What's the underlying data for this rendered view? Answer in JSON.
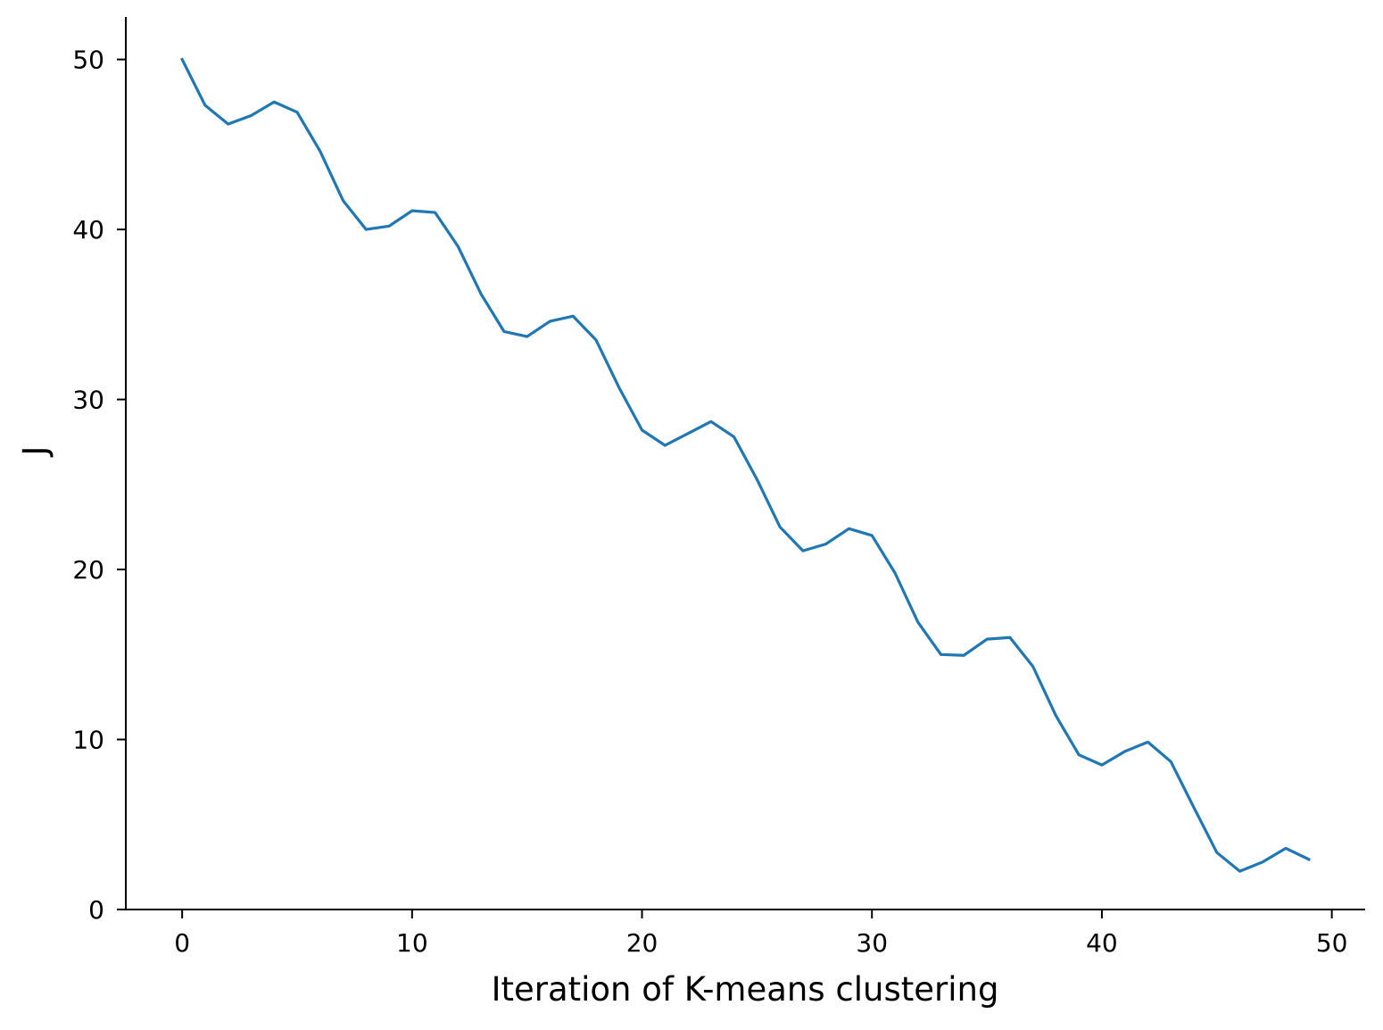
{
  "chart_data": {
    "type": "line",
    "title": "",
    "xlabel": "Iteration of K-means clustering",
    "ylabel": "J",
    "xlim": [
      -2.45,
      51.45
    ],
    "ylim": [
      0,
      52.5
    ],
    "xticks": [
      0,
      10,
      20,
      30,
      40,
      50
    ],
    "yticks": [
      0,
      10,
      20,
      30,
      40,
      50
    ],
    "grid": false,
    "legend": "none",
    "series": [
      {
        "color": "#1f77b4",
        "x": [
          0,
          1,
          2,
          3,
          4,
          5,
          6,
          7,
          8,
          9,
          10,
          11,
          12,
          13,
          14,
          15,
          16,
          17,
          18,
          19,
          20,
          21,
          22,
          23,
          24,
          25,
          26,
          27,
          28,
          29,
          30,
          31,
          32,
          33,
          34,
          35,
          36,
          37,
          38,
          39,
          40,
          41,
          42,
          43,
          44,
          45,
          46,
          47,
          48,
          49
        ],
        "y": [
          50.0,
          47.3,
          46.2,
          46.7,
          47.5,
          46.9,
          44.6,
          41.7,
          40.0,
          40.2,
          41.1,
          41.0,
          39.0,
          36.2,
          34.0,
          33.7,
          34.6,
          34.9,
          33.5,
          30.7,
          28.2,
          27.3,
          28.0,
          28.7,
          27.8,
          25.3,
          22.5,
          21.1,
          21.5,
          22.4,
          22.0,
          19.8,
          16.9,
          15.0,
          14.95,
          15.9,
          16.0,
          14.3,
          11.4,
          9.1,
          8.5,
          9.3,
          9.85,
          8.7,
          6.0,
          3.35,
          2.25,
          2.8,
          3.6,
          2.95
        ]
      }
    ]
  }
}
